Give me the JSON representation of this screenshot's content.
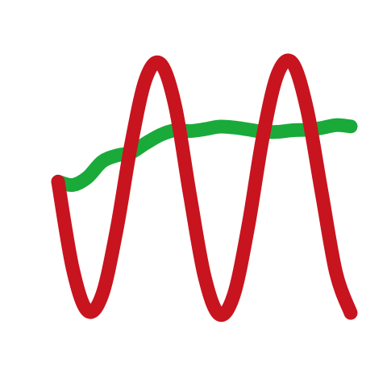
{
  "chart_data": {
    "type": "line",
    "title": "",
    "xlabel": "",
    "ylabel": "",
    "grid": false,
    "legend": "none",
    "axes_visible": false,
    "xlim": [
      0,
      100
    ],
    "ylim": [
      0,
      100
    ],
    "x": [
      0,
      5,
      10,
      15,
      20,
      25,
      30,
      35,
      40,
      45,
      50,
      55,
      60,
      65,
      70,
      75,
      80,
      85,
      90,
      95,
      100
    ],
    "series": [
      {
        "color": "#c8141f",
        "values": [
          52.1,
          18.5,
          2.1,
          8.0,
          33.3,
          66.7,
          92.0,
          97.8,
          81.5,
          47.4,
          15.7,
          0.7,
          8.0,
          34.9,
          69.5,
          93.7,
          98.2,
          80.5,
          48.4,
          16.7,
          1.2
        ]
      },
      {
        "color": "#1aaa3a",
        "values": [
          52.1,
          50.8,
          53.7,
          59.8,
          62.2,
          63.4,
          67.0,
          70.2,
          72.0,
          71.7,
          72.4,
          73.4,
          73.1,
          72.3,
          71.4,
          71.4,
          72.0,
          72.2,
          72.9,
          74.0,
          73.5
        ]
      }
    ]
  }
}
